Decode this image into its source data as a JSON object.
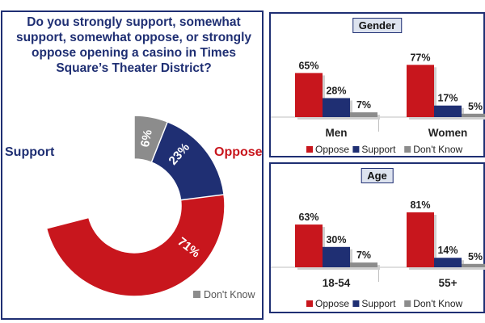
{
  "chart_data": [
    {
      "type": "pie",
      "title": "Do you strongly support, somewhat support, somewhat oppose, or strongly oppose opening a casino in Times Square’s Theater District?",
      "donut": true,
      "slices": [
        {
          "name": "Oppose",
          "value": 71,
          "label": "71%",
          "color": "#c8161d"
        },
        {
          "name": "Support",
          "value": 23,
          "label": "23%",
          "color": "#1f2f73"
        },
        {
          "name": "Don't Know",
          "value": 6,
          "label": "6%",
          "color": "#8c8c8c"
        }
      ],
      "outer_labels": {
        "support": "Support",
        "oppose": "Oppose"
      },
      "legend": [
        {
          "name": "Don't Know",
          "color": "#8c8c8c"
        }
      ],
      "legend_position": "bottom-right"
    },
    {
      "type": "bar",
      "title": "Gender",
      "categories": [
        "Men",
        "Women"
      ],
      "series": [
        {
          "name": "Oppose",
          "color": "#c8161d",
          "values": [
            65,
            77
          ],
          "labels": [
            "65%",
            "77%"
          ]
        },
        {
          "name": "Support",
          "color": "#1f2f73",
          "values": [
            28,
            17
          ],
          "labels": [
            "28%",
            "17%"
          ]
        },
        {
          "name": "Don't Know",
          "color": "#8c8c8c",
          "values": [
            7,
            5
          ],
          "labels": [
            "7%",
            "5%"
          ]
        }
      ],
      "ylim": [
        0,
        100
      ],
      "legend_position": "bottom"
    },
    {
      "type": "bar",
      "title": "Age",
      "categories": [
        "18-54",
        "55+"
      ],
      "series": [
        {
          "name": "Oppose",
          "color": "#c8161d",
          "values": [
            63,
            81
          ],
          "labels": [
            "63%",
            "81%"
          ]
        },
        {
          "name": "Support",
          "color": "#1f2f73",
          "values": [
            30,
            14
          ],
          "labels": [
            "30%",
            "14%"
          ]
        },
        {
          "name": "Don't Know",
          "color": "#8c8c8c",
          "values": [
            7,
            5
          ],
          "labels": [
            "7%",
            "5%"
          ]
        }
      ],
      "ylim": [
        0,
        100
      ],
      "legend_position": "bottom"
    }
  ]
}
